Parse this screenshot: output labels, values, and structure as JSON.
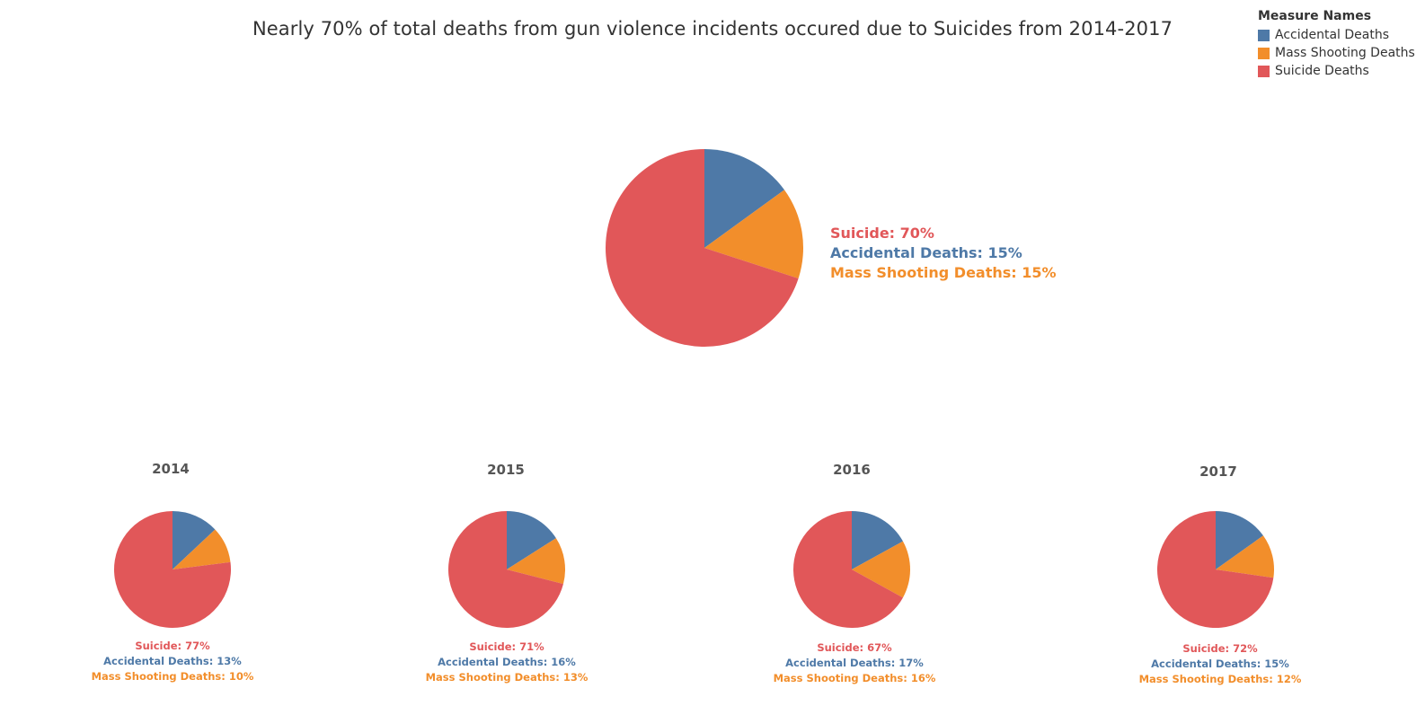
{
  "title": "Nearly 70% of total deaths from gun violence incidents occured due to Suicides from 2014-2017",
  "legend": {
    "title": "Measure Names",
    "items": [
      {
        "label": "Accidental Deaths",
        "color": "#4e79a7"
      },
      {
        "label": "Mass Shooting Deaths",
        "color": "#f28e2b"
      },
      {
        "label": "Suicide Deaths",
        "color": "#e15759"
      }
    ]
  },
  "labels": {
    "suicide": "Suicide",
    "accidental": "Accidental Deaths",
    "mass": "Mass Shooting Deaths"
  },
  "chart_data": [
    {
      "type": "pie",
      "title": "",
      "categories": [
        "Accidental Deaths",
        "Mass Shooting Deaths",
        "Suicide Deaths"
      ],
      "values": [
        15,
        15,
        70
      ],
      "text": {
        "suicide": "Suicide: 70%",
        "accidental": "Accidental Deaths: 15%",
        "mass": "Mass Shooting Deaths: 15%"
      }
    },
    {
      "type": "pie",
      "title": "2014",
      "categories": [
        "Accidental Deaths",
        "Mass Shooting Deaths",
        "Suicide Deaths"
      ],
      "values": [
        13,
        10,
        77
      ],
      "text": {
        "suicide": "Suicide: 77%",
        "accidental": "Accidental Deaths: 13%",
        "mass": "Mass Shooting Deaths: 10%"
      }
    },
    {
      "type": "pie",
      "title": "2015",
      "categories": [
        "Accidental Deaths",
        "Mass Shooting Deaths",
        "Suicide Deaths"
      ],
      "values": [
        16,
        13,
        71
      ],
      "text": {
        "suicide": "Suicide: 71%",
        "accidental": "Accidental Deaths: 16%",
        "mass": "Mass Shooting Deaths: 13%"
      }
    },
    {
      "type": "pie",
      "title": "2016",
      "categories": [
        "Accidental Deaths",
        "Mass Shooting Deaths",
        "Suicide Deaths"
      ],
      "values": [
        17,
        16,
        67
      ],
      "text": {
        "suicide": "Suicide: 67%",
        "accidental": "Accidental Deaths: 17%",
        "mass": "Mass Shooting Deaths: 16%"
      }
    },
    {
      "type": "pie",
      "title": "2017",
      "categories": [
        "Accidental Deaths",
        "Mass Shooting Deaths",
        "Suicide Deaths"
      ],
      "values": [
        15,
        12,
        72
      ],
      "text": {
        "suicide": "Suicide: 72%",
        "accidental": "Accidental Deaths: 15%",
        "mass": "Mass Shooting Deaths: 12%"
      }
    }
  ]
}
